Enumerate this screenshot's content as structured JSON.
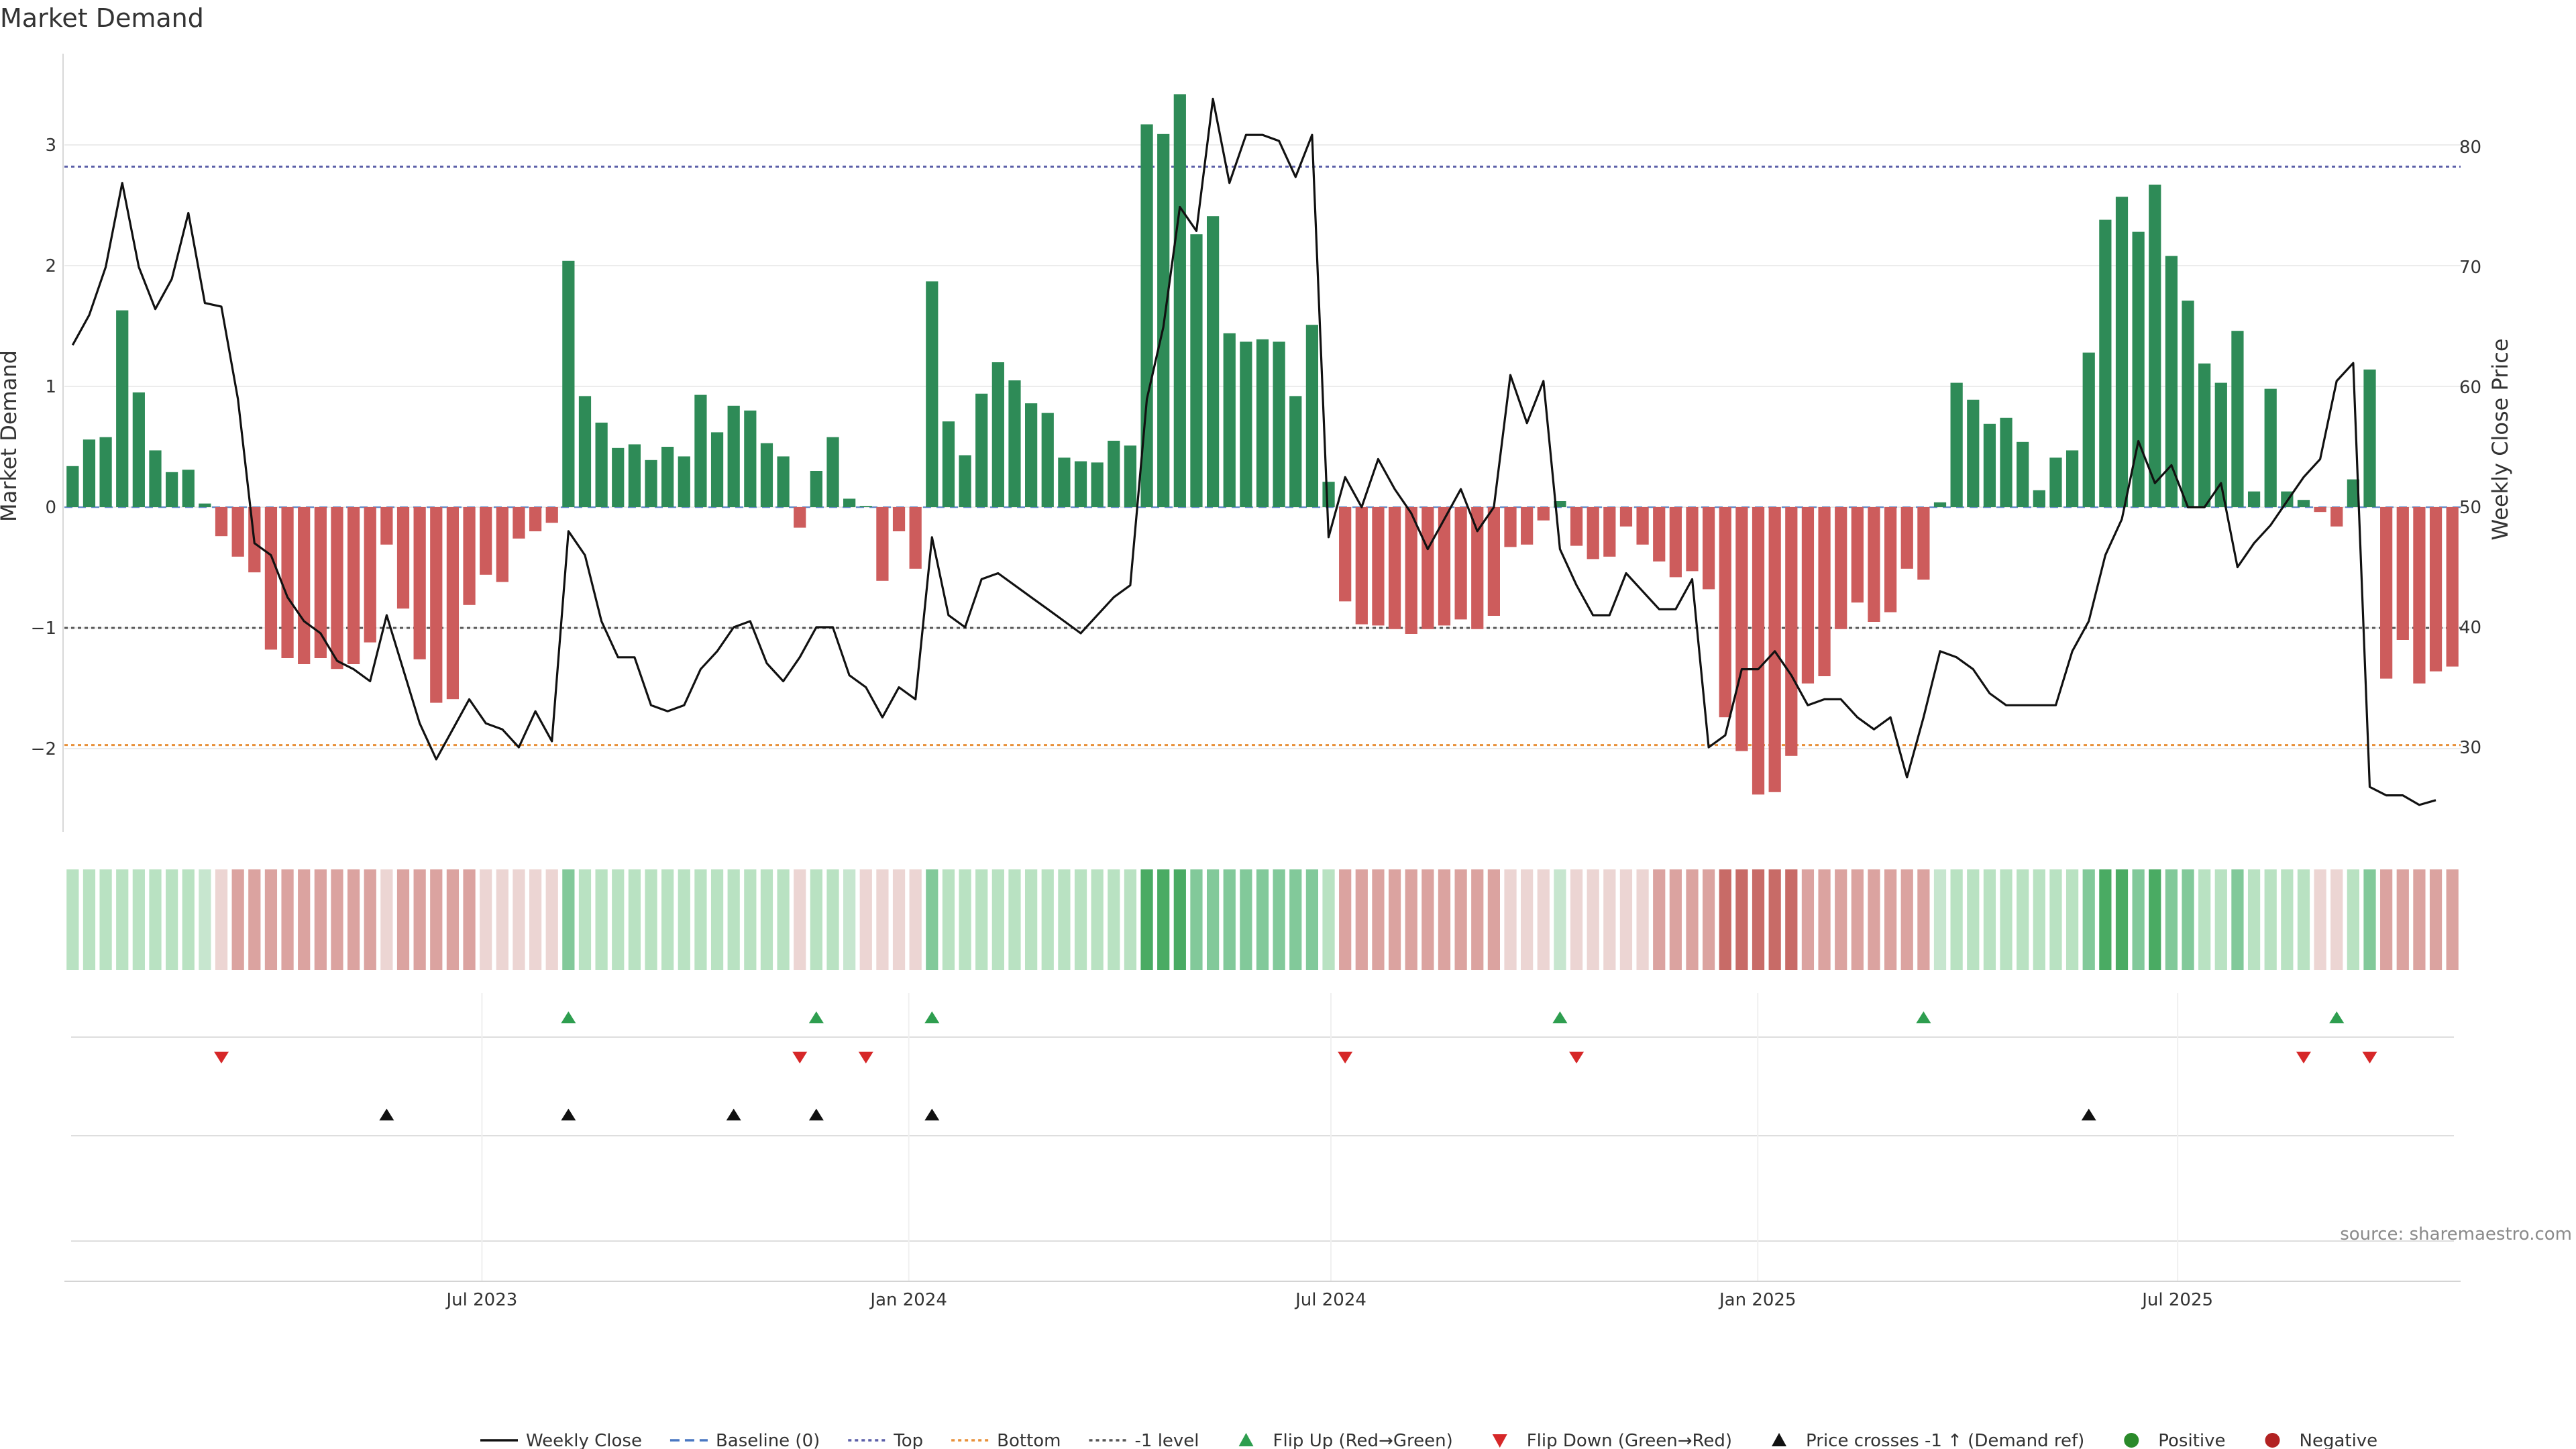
{
  "chart_data": {
    "type": "bar",
    "title": "Market Demand",
    "ylabel": "Market Demand",
    "y2label": "Weekly Close Price",
    "ylim": [
      -2.7,
      3.8
    ],
    "y2lim": [
      22,
      87
    ],
    "yticks": [
      -2,
      -1,
      0,
      1,
      2,
      3
    ],
    "y2ticks": [
      30,
      40,
      50,
      60,
      70,
      80
    ],
    "x_start": "2023-01-02",
    "x_end": "2025-10-31",
    "x_ticks": [
      {
        "label": "Jul 2023",
        "date": "2023-07-01"
      },
      {
        "label": "Jan 2024",
        "date": "2024-01-01"
      },
      {
        "label": "Jul 2024",
        "date": "2024-07-01"
      },
      {
        "label": "Jan 2025",
        "date": "2025-01-01"
      },
      {
        "label": "Jul 2025",
        "date": "2025-07-01"
      }
    ],
    "levels": [
      {
        "name": "Top",
        "value": 2.82,
        "color": "#5b5fa8"
      },
      {
        "name": "-1 level",
        "value": -1.0,
        "color": "#555555"
      },
      {
        "name": "Bottom",
        "value": -1.97,
        "color": "#e8903a"
      }
    ],
    "colors": {
      "positive": "#2e8b57",
      "negative": "#cd5c5c",
      "price": "#111111",
      "flip_up": "#2e9e4f",
      "flip_down": "#d62728",
      "cross": "#111111"
    },
    "demand": [
      0.34,
      0.56,
      0.58,
      1.63,
      0.95,
      0.47,
      0.29,
      0.31,
      0.03,
      -0.24,
      -0.41,
      -0.54,
      -1.18,
      -1.25,
      -1.3,
      -1.25,
      -1.34,
      -1.3,
      -1.12,
      -0.31,
      -0.84,
      -1.26,
      -1.62,
      -1.59,
      -0.81,
      -0.56,
      -0.62,
      -0.26,
      -0.2,
      -0.13,
      2.04,
      0.92,
      0.7,
      0.49,
      0.52,
      0.39,
      0.5,
      0.42,
      0.93,
      0.62,
      0.84,
      0.8,
      0.53,
      0.42,
      -0.17,
      0.3,
      0.58,
      0.07,
      0.01,
      -0.61,
      -0.2,
      -0.51,
      1.87,
      0.71,
      0.43,
      0.94,
      1.2,
      1.05,
      0.86,
      0.78,
      0.41,
      0.38,
      0.37,
      0.55,
      0.51,
      3.17,
      3.09,
      3.42,
      2.26,
      2.41,
      1.44,
      1.37,
      1.39,
      1.37,
      0.92,
      1.51,
      0.21,
      -0.78,
      -0.97,
      -0.98,
      -1.01,
      -1.05,
      -1.01,
      -0.98,
      -0.93,
      -1.01,
      -0.9,
      -0.33,
      -0.31,
      -0.11,
      0.05,
      -0.32,
      -0.43,
      -0.41,
      -0.16,
      -0.31,
      -0.45,
      -0.58,
      -0.53,
      -0.68,
      -1.74,
      -2.02,
      -2.38,
      -2.36,
      -2.06,
      -1.46,
      -1.4,
      -1.01,
      -0.79,
      -0.95,
      -0.87,
      -0.51,
      -0.6,
      0.04,
      1.03,
      0.89,
      0.69,
      0.74,
      0.54,
      0.14,
      0.41,
      0.47,
      1.28,
      2.38,
      2.57,
      2.28,
      2.67,
      2.08,
      1.71,
      1.19,
      1.03,
      1.46,
      0.13,
      0.98,
      0.13,
      0.06,
      -0.04,
      -0.16,
      0.23,
      1.14,
      -1.42,
      -1.1,
      -1.46,
      -1.36,
      -1.32
    ],
    "heat": [
      2,
      2,
      2,
      2,
      2,
      2,
      2,
      2,
      1,
      -1,
      -2,
      -2,
      -2,
      -2,
      -2,
      -2,
      -2,
      -2,
      -2,
      -1,
      -2,
      -2,
      -2,
      -2,
      -2,
      -1,
      -1,
      -1,
      -1,
      -1,
      3,
      2,
      2,
      2,
      2,
      2,
      2,
      2,
      2,
      2,
      2,
      2,
      2,
      2,
      -1,
      2,
      2,
      1,
      -1,
      -1,
      -1,
      -1,
      3,
      2,
      2,
      2,
      2,
      2,
      2,
      2,
      2,
      2,
      2,
      2,
      2,
      4,
      4,
      4,
      3,
      3,
      3,
      3,
      3,
      3,
      3,
      3,
      2,
      -2,
      -2,
      -2,
      -2,
      -2,
      -2,
      -2,
      -2,
      -2,
      -2,
      -1,
      -1,
      -1,
      1,
      -1,
      -1,
      -1,
      -1,
      -1,
      -2,
      -2,
      -2,
      -2,
      -3,
      -3,
      -3,
      -3,
      -3,
      -2,
      -2,
      -2,
      -2,
      -2,
      -2,
      -2,
      -2,
      1,
      2,
      2,
      2,
      2,
      2,
      2,
      2,
      2,
      3,
      4,
      4,
      3,
      4,
      3,
      3,
      2,
      2,
      3,
      2,
      2,
      2,
      2,
      -1,
      -1,
      2,
      3,
      -2,
      -2,
      -2,
      -2,
      -2
    ],
    "price": [
      63.5,
      66,
      70,
      77,
      70,
      66.5,
      69,
      74.5,
      67,
      66.7,
      59,
      47,
      46,
      42.5,
      40.5,
      39.5,
      37.2,
      36.5,
      35.5,
      41,
      36.5,
      32,
      29,
      31.5,
      34,
      32,
      31.5,
      30,
      33,
      30.5,
      48,
      46,
      40.5,
      37.5,
      37.5,
      33.5,
      33,
      33.5,
      36.5,
      38,
      40,
      40.5,
      37,
      35.5,
      37.5,
      40,
      40,
      36,
      35,
      32.5,
      35,
      34,
      47.5,
      41,
      40,
      44,
      44.5,
      43.5,
      42.5,
      41.5,
      40.5,
      39.5,
      41,
      42.5,
      43.5,
      59,
      65,
      75,
      73,
      84,
      77,
      81,
      81,
      80.5,
      77.5,
      81,
      47.5,
      52.5,
      50,
      54,
      51.5,
      49.5,
      46.5,
      49,
      51.5,
      48,
      50,
      61,
      57,
      60.5,
      46.5,
      43.5,
      41,
      41,
      44.5,
      43,
      41.5,
      41.5,
      44,
      30,
      31,
      36.5,
      36.5,
      38,
      36,
      33.5,
      34,
      34,
      32.5,
      31.5,
      32.5,
      27.5,
      32.5,
      38,
      37.5,
      36.5,
      34.5,
      33.5,
      33.5,
      33.5,
      33.5,
      38,
      40.5,
      46,
      49,
      55.5,
      52,
      53.5,
      50,
      50,
      52,
      45,
      47,
      48.5,
      50.5,
      52.5,
      54,
      60.5,
      62,
      26.7,
      26,
      26,
      25.2,
      25.6
    ],
    "flip_up": [
      30,
      45,
      52,
      90,
      112,
      137
    ],
    "flip_down": [
      9,
      44,
      48,
      77,
      91,
      135,
      139
    ],
    "price_cross": [
      19,
      30,
      40,
      45,
      52,
      122
    ]
  },
  "legend": [
    {
      "label": "Weekly Close",
      "icon": "line-solid",
      "color": "#111111"
    },
    {
      "label": "Baseline (0)",
      "icon": "line-dashed",
      "color": "#4a78c2"
    },
    {
      "label": "Top",
      "icon": "line-dotted",
      "color": "#5b5fa8"
    },
    {
      "label": "Bottom",
      "icon": "line-dotted",
      "color": "#e8903a"
    },
    {
      "label": "-1 level",
      "icon": "line-dotted",
      "color": "#555555"
    },
    {
      "label": "Flip Up (Red→Green)",
      "icon": "triangle-up",
      "color": "#2e9e4f"
    },
    {
      "label": "Flip Down (Green→Red)",
      "icon": "triangle-down",
      "color": "#d62728"
    },
    {
      "label": "Price crosses -1 ↑ (Demand ref)",
      "icon": "triangle-up",
      "color": "#111111"
    },
    {
      "label": "Positive",
      "icon": "dot",
      "color": "#2a8a2a"
    },
    {
      "label": "Negative",
      "icon": "dot",
      "color": "#b22222"
    }
  ],
  "source": "source: sharemaestro.com"
}
